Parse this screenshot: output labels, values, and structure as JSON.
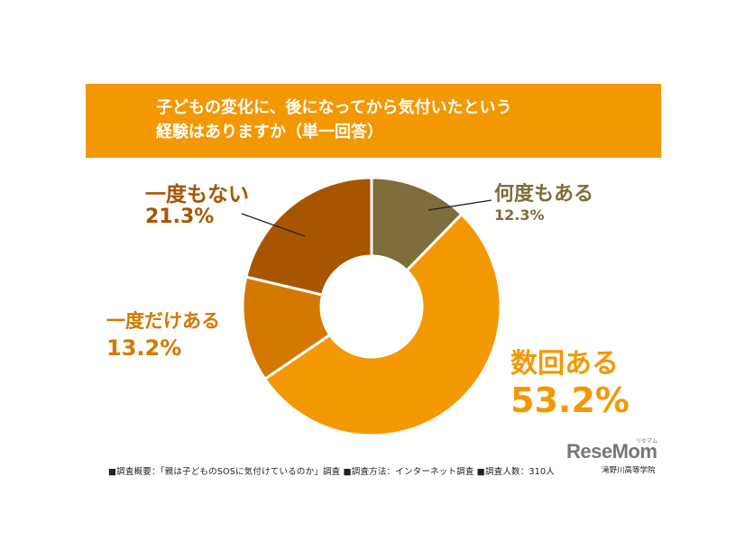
{
  "title": {
    "line1": "子どもの変化に、後になってから気付いたという",
    "line2": "経験はありますか（単一回答）"
  },
  "chart_data": {
    "type": "pie",
    "title": "子どもの変化に、後になってから気付いたという経験はありますか（単一回答）",
    "slices": [
      {
        "name": "何度もある",
        "value": 12.3,
        "label": "12.3%",
        "color": "#7d6e3b"
      },
      {
        "name": "数回ある",
        "value": 53.2,
        "label": "53.2%",
        "color": "#f39800"
      },
      {
        "name": "一度だけある",
        "value": 13.2,
        "label": "13.2%",
        "color": "#d57800"
      },
      {
        "name": "一度もない",
        "value": 21.3,
        "label": "21.3%",
        "color": "#a85500"
      }
    ]
  },
  "footer": {
    "text": "■調査概要：「親は子どものSOSに気付けているのか」調査 ■調査方法：インターネット調査 ■調査人数：310人",
    "credit": "滝野川高等学院"
  },
  "logo": {
    "text": "ReseMom",
    "small": "リセマム"
  }
}
